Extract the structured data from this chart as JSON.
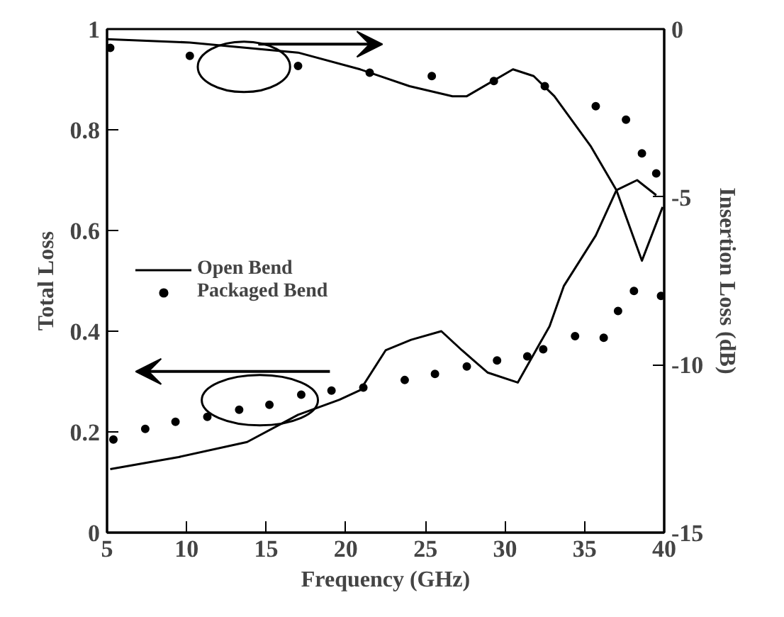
{
  "chart_data": {
    "type": "line",
    "xlabel": "Frequency (GHz)",
    "ylabel": "Total Loss",
    "y2label": "Insertion Loss (dB)",
    "xlim": [
      5,
      40
    ],
    "xticks": [
      5,
      10,
      15,
      20,
      25,
      30,
      35,
      40
    ],
    "ylim": [
      0,
      1
    ],
    "yticks": [
      0,
      0.2,
      0.4,
      0.6,
      0.8,
      1
    ],
    "y2lim": [
      -15,
      0
    ],
    "y2ticks": [
      0,
      -5,
      -10,
      -15
    ],
    "legend": "left",
    "grid": false,
    "series": [
      {
        "name": "Open Bend",
        "color": "#000000",
        "line_style": "solid",
        "x": [
          5.2,
          9.5,
          13.8,
          17,
          19.6,
          20.9,
          22.5,
          24.1,
          26,
          27.3,
          28.9,
          30.8,
          32.8,
          33.7,
          35.7,
          37,
          38.3,
          39.5
        ],
        "values": [
          0.126,
          0.15,
          0.18,
          0.234,
          0.264,
          0.283,
          0.362,
          0.383,
          0.4,
          0.362,
          0.318,
          0.298,
          0.41,
          0.49,
          0.59,
          0.68,
          0.7,
          0.67
        ]
      },
      {
        "name": "Packaged Bend",
        "color": "#000000",
        "type": "scatter",
        "marker": "circle",
        "x": [
          5.4,
          7.4,
          9.3,
          11.3,
          13.3,
          15.2,
          17.2,
          19.1,
          21.1,
          23.7,
          25.6,
          27.6,
          29.5,
          31.4,
          32.4,
          34.4,
          36.2,
          37.1,
          38.1,
          39.8
        ],
        "values": [
          0.185,
          0.206,
          0.22,
          0.23,
          0.244,
          0.254,
          0.274,
          0.282,
          0.288,
          0.303,
          0.315,
          0.33,
          0.342,
          0.35,
          0.364,
          0.39,
          0.387,
          0.44,
          0.48,
          0.47
        ]
      },
      {
        "color": "#000000",
        "line_style": "solid",
        "axis": "y2",
        "x": [
          5,
          10.2,
          17,
          20.9,
          24,
          26.7,
          27.6,
          30.5,
          31.8,
          33.1,
          35.4,
          37,
          38.6,
          39.9
        ],
        "values": [
          -0.3,
          -0.4,
          -0.7,
          -1.2,
          -1.7,
          -2.0,
          -2.0,
          -1.2,
          -1.4,
          -2.0,
          -3.5,
          -4.8,
          -6.9,
          -5.3
        ]
      },
      {
        "color": "#000000",
        "type": "scatter",
        "marker": "circle",
        "axis": "y2",
        "x": [
          5.2,
          10.2,
          17,
          21.5,
          25.4,
          29.3,
          32.5,
          35.7,
          37.6,
          38.6,
          39.5
        ],
        "values": [
          -0.56,
          -0.8,
          -1.1,
          -1.3,
          -1.4,
          -1.55,
          -1.7,
          -2.3,
          -2.7,
          -3.7,
          -4.3
        ]
      }
    ]
  }
}
